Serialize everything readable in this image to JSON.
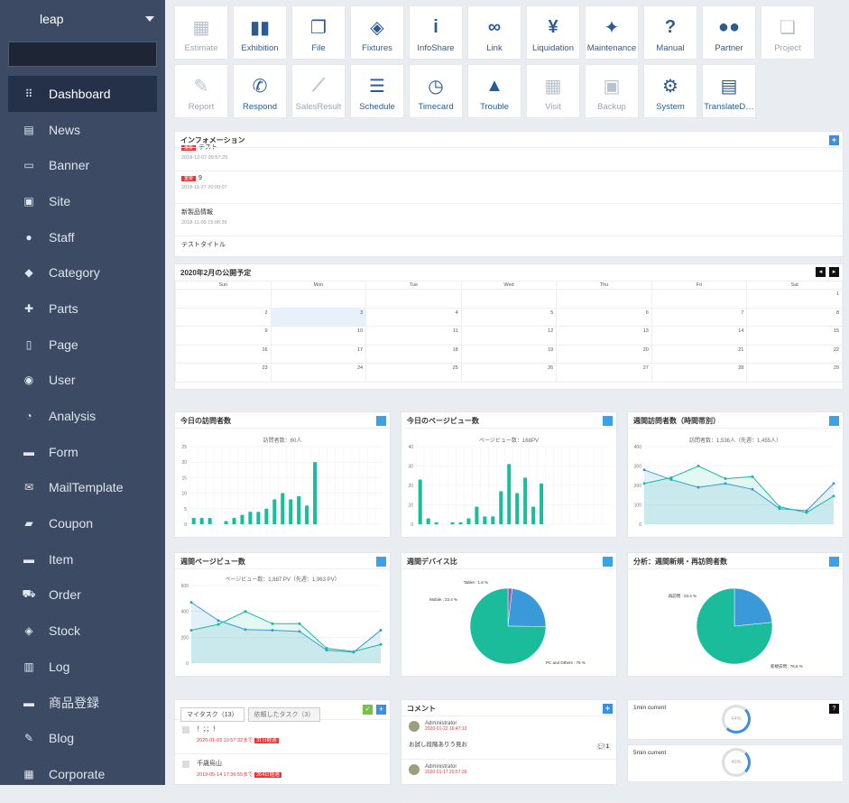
{
  "app": {
    "brand": "leap"
  },
  "search": {
    "placeholder": ""
  },
  "menu": [
    {
      "label": "Dashboard",
      "icon": "grid-icon",
      "active": true
    },
    {
      "label": "News",
      "icon": "newspaper-icon"
    },
    {
      "label": "Banner",
      "icon": "banner-icon"
    },
    {
      "label": "Site",
      "icon": "monitor-icon"
    },
    {
      "label": "Staff",
      "icon": "person-icon"
    },
    {
      "label": "Category",
      "icon": "tags-icon"
    },
    {
      "label": "Parts",
      "icon": "puzzle-icon"
    },
    {
      "label": "Page",
      "icon": "page-icon"
    },
    {
      "label": "User",
      "icon": "users-icon"
    },
    {
      "label": "Analysis",
      "icon": "pie-icon"
    },
    {
      "label": "Form",
      "icon": "form-icon"
    },
    {
      "label": "MailTemplate",
      "icon": "mail-icon"
    },
    {
      "label": "Coupon",
      "icon": "coupon-icon"
    },
    {
      "label": "Item",
      "icon": "archive-icon"
    },
    {
      "label": "Order",
      "icon": "cart-icon"
    },
    {
      "label": "Stock",
      "icon": "boxes-icon"
    },
    {
      "label": "Log",
      "icon": "database-icon"
    },
    {
      "label": "商品登録",
      "icon": "archive-icon"
    },
    {
      "label": "Blog",
      "icon": "pencil-icon"
    },
    {
      "label": "Corporate",
      "icon": "building-icon"
    }
  ],
  "tiles": [
    {
      "label": "Estimate",
      "icon": "calculator-icon",
      "dim": true
    },
    {
      "label": "Exhibition",
      "icon": "exhibition-icon"
    },
    {
      "label": "File",
      "icon": "files-icon"
    },
    {
      "label": "Fixtures",
      "icon": "cube-icon"
    },
    {
      "label": "InfoShare",
      "icon": "info-icon"
    },
    {
      "label": "Link",
      "icon": "link-icon"
    },
    {
      "label": "Liquidation",
      "icon": "yen-icon"
    },
    {
      "label": "Maintenance",
      "icon": "wrench-icon"
    },
    {
      "label": "Manual",
      "icon": "question-icon"
    },
    {
      "label": "Partner",
      "icon": "partner-icon"
    },
    {
      "label": "Project",
      "icon": "windows-icon",
      "dim": true
    },
    {
      "label": "Report",
      "icon": "report-icon",
      "dim": true
    },
    {
      "label": "Respond",
      "icon": "phone-icon"
    },
    {
      "label": "SalesResult",
      "icon": "trend-icon",
      "dim": true
    },
    {
      "label": "Schedule",
      "icon": "server-icon"
    },
    {
      "label": "Timecard",
      "icon": "clock-icon"
    },
    {
      "label": "Trouble",
      "icon": "warning-icon"
    },
    {
      "label": "Visit",
      "icon": "calendar-icon",
      "dim": true
    },
    {
      "label": "Backup",
      "icon": "save-icon",
      "dim": true
    },
    {
      "label": "System",
      "icon": "gear-icon"
    },
    {
      "label": "TranslateD…",
      "icon": "translate-icon"
    }
  ],
  "info": {
    "title": "インフォメーション",
    "items": [
      {
        "badge": "重要",
        "title": "テスト",
        "date": "2018-12-07 09:57:29"
      },
      {
        "badge": "重要",
        "title": "9",
        "date": "2018-11-27 20:00:07"
      },
      {
        "badge": "",
        "title": "新製品情報",
        "date": "2018-11-05 15:06:36"
      },
      {
        "badge": "",
        "title": "テストタイトル",
        "date": ""
      }
    ]
  },
  "calendar": {
    "title": "2020年2月の公開予定",
    "weekdays": [
      "Sun",
      "Mon",
      "Tue",
      "Wed",
      "Thu",
      "Fri",
      "Sat"
    ],
    "weeks": [
      [
        "",
        "",
        "",
        "",
        "",
        "",
        "1"
      ],
      [
        "2",
        "3",
        "4",
        "5",
        "6",
        "7",
        "8"
      ],
      [
        "9",
        "10",
        "11",
        "12",
        "13",
        "14",
        "15"
      ],
      [
        "16",
        "17",
        "18",
        "19",
        "20",
        "21",
        "22"
      ],
      [
        "23",
        "24",
        "25",
        "26",
        "27",
        "28",
        "29"
      ]
    ]
  },
  "charts": {
    "visits": {
      "title": "今日の訪問者数",
      "subtitle": "訪問者数：80人"
    },
    "pageviews": {
      "title": "今日のページビュー数",
      "subtitle": "ページビュー数：168PV"
    },
    "weekly_visits": {
      "title": "週間訪問者数（時間帯別）",
      "subtitle": "訪問者数：1,536人（先週：1,455人）"
    },
    "weekly_pv": {
      "title": "週間ページビュー数",
      "subtitle": "ページビュー数：1,887 PV（先週：1,963 PV）"
    },
    "device": {
      "title": "週間デバイス比",
      "labels": [
        "Tablet : 1.8 %",
        "Mobile : 23.4 %",
        "PC and Others : 75 %"
      ]
    },
    "newret": {
      "title": "分析：週間新規・再訪問者数",
      "labels": [
        "再訪問 : 23.4 %",
        "新規訪問 : 76.6 %"
      ]
    }
  },
  "chart_data": [
    {
      "type": "bar",
      "title": "今日の訪問者数",
      "subtitle": "訪問者数：80人",
      "ylim": [
        0,
        25
      ],
      "yticks": [
        "0",
        "5",
        "10",
        "15",
        "20",
        "25"
      ],
      "values": [
        2,
        2,
        2,
        0,
        1,
        2,
        3,
        4,
        4,
        5,
        8,
        10,
        8,
        9,
        6,
        20,
        0,
        0,
        0,
        0,
        0,
        0,
        0,
        0
      ]
    },
    {
      "type": "bar",
      "title": "今日のページビュー数",
      "subtitle": "ページビュー数：168PV",
      "ylim": [
        0,
        40
      ],
      "yticks": [
        "0",
        "10",
        "20",
        "30",
        "40"
      ],
      "values": [
        23,
        3,
        1,
        0,
        1,
        1,
        3,
        9,
        4,
        4,
        17,
        31,
        16,
        24,
        9,
        21,
        0,
        0,
        0,
        0,
        0,
        0,
        0,
        0
      ]
    },
    {
      "type": "area",
      "title": "週間訪問者数（時間帯別）",
      "subtitle": "訪問者数：1,536人（先週：1,455人）",
      "ylim": [
        0,
        400
      ],
      "yticks": [
        "0",
        "100",
        "200",
        "300",
        "400"
      ],
      "series": [
        {
          "values": [
            280,
            230,
            190,
            210,
            180,
            80,
            70,
            210
          ]
        },
        {
          "values": [
            210,
            240,
            300,
            235,
            245,
            90,
            60,
            145
          ]
        }
      ]
    },
    {
      "type": "area",
      "title": "週間ページビュー数",
      "subtitle": "ページビュー数：1,887 PV（先週：1,963 PV）",
      "ylim": [
        0,
        600
      ],
      "yticks": [
        "0",
        "200",
        "400",
        "600"
      ],
      "series": [
        {
          "values": [
            470,
            330,
            260,
            255,
            245,
            100,
            85,
            255
          ]
        },
        {
          "values": [
            255,
            300,
            400,
            305,
            305,
            115,
            90,
            145
          ]
        }
      ]
    },
    {
      "type": "pie",
      "title": "週間デバイス比",
      "slices": [
        {
          "name": "Tablet",
          "value": 1.8
        },
        {
          "name": "Mobile",
          "value": 23.4
        },
        {
          "name": "PC and Others",
          "value": 75
        }
      ]
    },
    {
      "type": "pie",
      "title": "分析：週間新規・再訪問者数",
      "slices": [
        {
          "name": "再訪問",
          "value": 23.4
        },
        {
          "name": "新規訪問",
          "value": 76.6
        }
      ]
    }
  ],
  "tasks": {
    "tabs": [
      "マイタスク（13）",
      "依頼したタスク（3）"
    ],
    "items": [
      {
        "title": "！；；！",
        "date": "2020-01-03 10:57:32まで",
        "badge": "31日経過"
      },
      {
        "title": "千歳烏山",
        "date": "2019-05-14 17:36:55まで",
        "badge": "264日経過"
      }
    ]
  },
  "comments": {
    "title": "コメント",
    "items": [
      {
        "author": "Administrator",
        "date": "2020-01-22 16:47:10",
        "text": "お試し段階ありう見お",
        "count": "1"
      },
      {
        "author": "Administrator",
        "date": "2020-01-17 20:57:39",
        "text": ""
      }
    ]
  },
  "gauges": [
    {
      "label": "1min current",
      "value": "64%"
    },
    {
      "label": "5min current",
      "value": "40%"
    }
  ],
  "colors": {
    "sidebar": "#3c4a63",
    "accent": "#2c5b8f",
    "teal": "#1abc9c",
    "blue": "#3a9ad9"
  }
}
